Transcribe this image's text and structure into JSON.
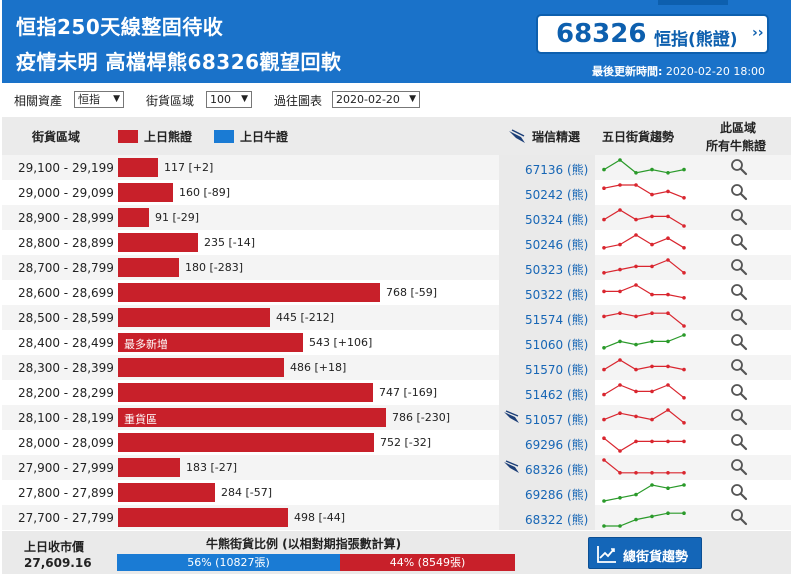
{
  "header": {
    "headline1": "恒指250天線整固待收",
    "headline2": "疫情未明 高檔桿熊68326觀望回軟",
    "badge_code": "68326",
    "badge_label": "恒指(熊證)",
    "badge_chevron": "››",
    "update_label": "最後更新時間:",
    "update_value": "2020-02-20 18:00"
  },
  "filters": {
    "asset_label": "相關資產",
    "asset_value": "恒指",
    "zone_label": "街貨區域",
    "zone_value": "100",
    "history_label": "過往圖表",
    "history_value": "2020-02-20"
  },
  "columns": {
    "zone": "街貨區域",
    "bear_legend": "上日熊證",
    "bull_legend": "上日牛證",
    "pick": "瑞信精選",
    "trend": "五日街貨趨勢",
    "all_line1": "此區域",
    "all_line2": "所有牛熊證"
  },
  "colors": {
    "header_blue": "#1a72c9",
    "bear_red": "#c8202a",
    "bull_blue": "#1a7bd4",
    "code_blue": "#1766b5",
    "trend_up_green": "#2a9a2a",
    "trend_down_red": "#d9262f"
  },
  "bar_scale_max": 786,
  "rows": [
    {
      "range": "29,100 - 29,199",
      "value": 117,
      "change": "[+2]",
      "value_text": "117 [+2]",
      "tag": "",
      "code": "67136 (熊)",
      "flag": false,
      "trend_color": "green",
      "trend": [
        3,
        6,
        2,
        3,
        2,
        3
      ],
      "mag_icon": "magnifier-icon"
    },
    {
      "range": "29,000 - 29,099",
      "value": 160,
      "change": "[-89]",
      "value_text": "160 [-89]",
      "tag": "",
      "code": "50242 (熊)",
      "flag": false,
      "trend_color": "red",
      "trend": [
        5,
        6,
        6,
        3,
        4,
        2
      ],
      "mag_icon": "magnifier-icon"
    },
    {
      "range": "28,900 - 28,999",
      "value": 91,
      "change": "[-29]",
      "value_text": "91 [-29]",
      "tag": "",
      "code": "50324 (熊)",
      "flag": false,
      "trend_color": "red",
      "trend": [
        3,
        6,
        3,
        4,
        4,
        1
      ],
      "mag_icon": "magnifier-icon"
    },
    {
      "range": "28,800 - 28,899",
      "value": 235,
      "change": "[-14]",
      "value_text": "235 [-14]",
      "tag": "",
      "code": "50246 (熊)",
      "flag": false,
      "trend_color": "red",
      "trend": [
        2,
        3,
        6,
        3,
        5,
        2
      ],
      "mag_icon": "magnifier-icon"
    },
    {
      "range": "28,700 - 28,799",
      "value": 180,
      "change": "[-283]",
      "value_text": "180 [-283]",
      "tag": "",
      "code": "50323 (熊)",
      "flag": false,
      "trend_color": "red",
      "trend": [
        2,
        3,
        4,
        4,
        6,
        2
      ],
      "mag_icon": "magnifier-icon"
    },
    {
      "range": "28,600 - 28,699",
      "value": 768,
      "change": "[-59]",
      "value_text": "768 [-59]",
      "tag": "",
      "code": "50322 (熊)",
      "flag": false,
      "trend_color": "red",
      "trend": [
        4,
        4,
        6,
        3,
        3,
        2
      ],
      "mag_icon": "magnifier-icon"
    },
    {
      "range": "28,500 - 28,599",
      "value": 445,
      "change": "[-212]",
      "value_text": "445 [-212]",
      "tag": "",
      "code": "51574 (熊)",
      "flag": false,
      "trend_color": "red",
      "trend": [
        4,
        5,
        4,
        5,
        5,
        1
      ],
      "mag_icon": "magnifier-icon"
    },
    {
      "range": "28,400 - 28,499",
      "value": 543,
      "change": "[+106]",
      "value_text": "543 [+106]",
      "tag": "最多新增",
      "code": "51060 (熊)",
      "flag": false,
      "trend_color": "green",
      "trend": [
        2,
        4,
        3,
        4,
        4,
        6
      ],
      "mag_icon": "magnifier-icon"
    },
    {
      "range": "28,300 - 28,399",
      "value": 486,
      "change": "[+18]",
      "value_text": "486 [+18]",
      "tag": "",
      "code": "51570 (熊)",
      "flag": false,
      "trend_color": "red",
      "trend": [
        3,
        6,
        3,
        4,
        4,
        3
      ],
      "mag_icon": "magnifier-icon"
    },
    {
      "range": "28,200 - 28,299",
      "value": 747,
      "change": "[-169]",
      "value_text": "747 [-169]",
      "tag": "",
      "code": "51462 (熊)",
      "flag": false,
      "trend_color": "red",
      "trend": [
        3,
        6,
        4,
        4,
        6,
        2
      ],
      "mag_icon": "magnifier-icon"
    },
    {
      "range": "28,100 - 28,199",
      "value": 786,
      "change": "[-230]",
      "value_text": "786 [-230]",
      "tag": "重貨區",
      "code": "51057 (熊)",
      "flag": true,
      "trend_color": "red",
      "trend": [
        3,
        5,
        4,
        3,
        6,
        2
      ],
      "mag_icon": "magnifier-icon"
    },
    {
      "range": "28,000 - 28,099",
      "value": 752,
      "change": "[-32]",
      "value_text": "752 [-32]",
      "tag": "",
      "code": "69296 (熊)",
      "flag": false,
      "trend_color": "red",
      "trend": [
        5,
        1,
        4,
        4,
        4,
        4
      ],
      "mag_icon": "magnifier-icon"
    },
    {
      "range": "27,900 - 27,999",
      "value": 183,
      "change": "[-27]",
      "value_text": "183 [-27]",
      "tag": "",
      "code": "68326 (熊)",
      "flag": true,
      "trend_color": "red",
      "trend": [
        6,
        2,
        2,
        2,
        2,
        2
      ],
      "mag_icon": "magnifier-icon"
    },
    {
      "range": "27,800 - 27,899",
      "value": 284,
      "change": "[-57]",
      "value_text": "284 [-57]",
      "tag": "",
      "code": "69286 (熊)",
      "flag": false,
      "trend_color": "green",
      "trend": [
        1,
        2,
        3,
        6,
        5,
        6
      ],
      "mag_icon": "magnifier-icon"
    },
    {
      "range": "27,700 - 27,799",
      "value": 498,
      "change": "[-44]",
      "value_text": "498 [-44]",
      "tag": "",
      "code": "68322 (熊)",
      "flag": false,
      "trend_color": "green",
      "trend": [
        1,
        1,
        3,
        4,
        5,
        5
      ],
      "mag_icon": "magnifier-icon"
    }
  ],
  "footer": {
    "close_label": "上日收市價",
    "close_value": "27,609.16",
    "ratio_title": "牛熊街貨比例 (以相對期指張數計算)",
    "bull_fraction": 0.56,
    "bull_text": "56% (10827張)",
    "bear_fraction": 0.44,
    "bear_text": "44% (8549張)",
    "trend_button": "總街貨趨勢",
    "trend_button_icon": "chart-trend-icon"
  }
}
